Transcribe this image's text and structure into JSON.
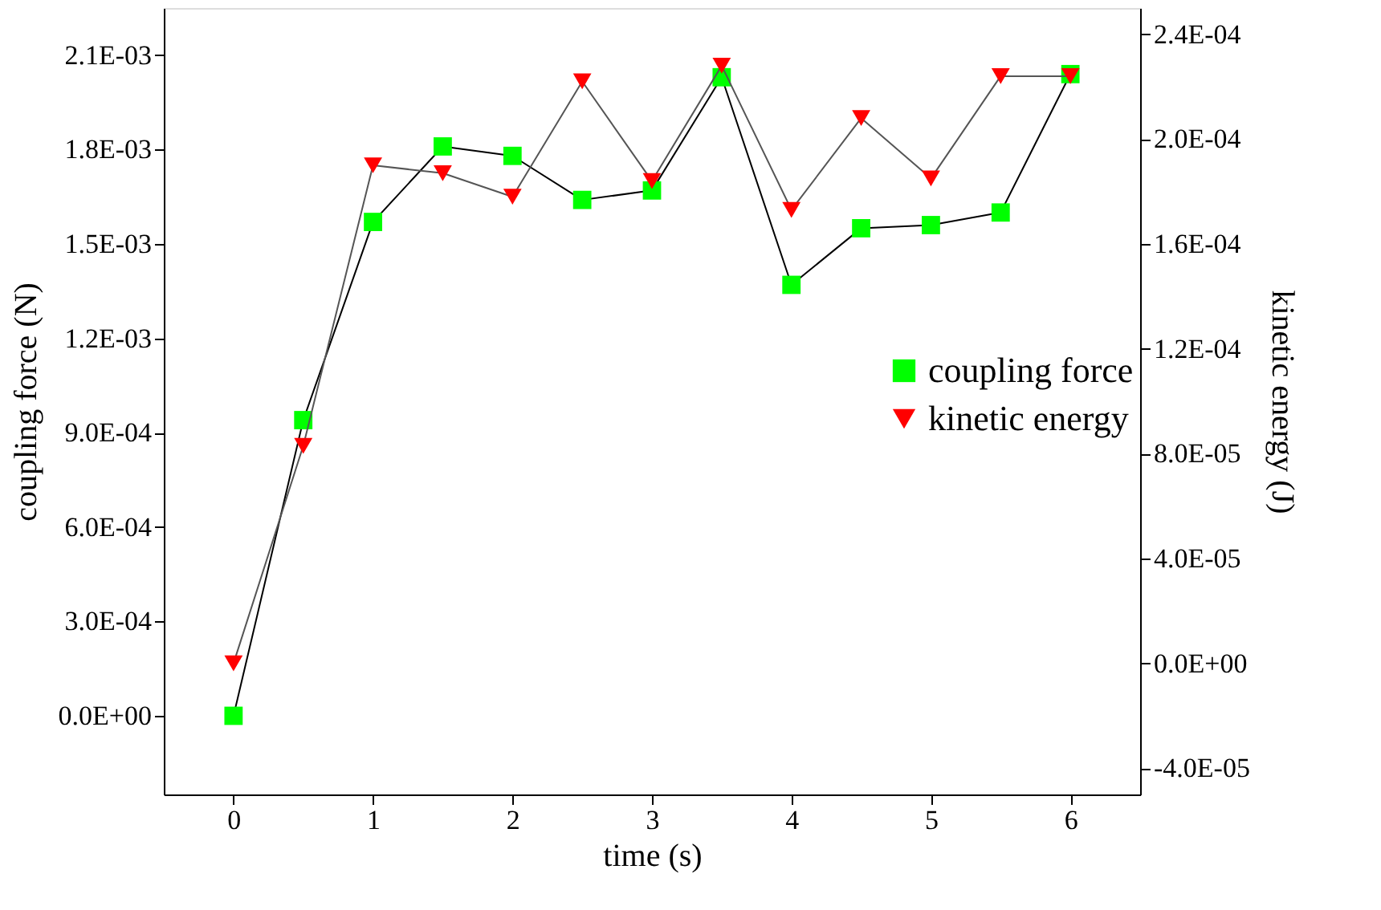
{
  "chart_data": {
    "type": "line",
    "xlabel": "time (s)",
    "ylabel": "coupling force (N)",
    "y2label": "kinetic energy (J)",
    "x": [
      0,
      0.5,
      1,
      1.5,
      2,
      2.5,
      3,
      3.5,
      4,
      4.5,
      5,
      5.5,
      6
    ],
    "xlim": [
      -0.5,
      6.5
    ],
    "xticks": [
      0,
      1,
      2,
      3,
      4,
      5,
      6
    ],
    "ylim": [
      -0.00025,
      0.00225
    ],
    "yticks": [
      {
        "value": 0,
        "label": "0.0E+00"
      },
      {
        "value": 0.0003,
        "label": "3.0E-04"
      },
      {
        "value": 0.0006,
        "label": "6.0E-04"
      },
      {
        "value": 0.0009,
        "label": "9.0E-04"
      },
      {
        "value": 0.0012,
        "label": "1.2E-03"
      },
      {
        "value": 0.0015,
        "label": "1.5E-03"
      },
      {
        "value": 0.0018,
        "label": "1.8E-03"
      },
      {
        "value": 0.0021,
        "label": "2.1E-03"
      }
    ],
    "y2lim": [
      -5e-05,
      0.00025
    ],
    "y2ticks": [
      {
        "value": -4e-05,
        "label": "-4.0E-05"
      },
      {
        "value": 0,
        "label": "0.0E+00"
      },
      {
        "value": 4e-05,
        "label": "4.0E-05"
      },
      {
        "value": 8e-05,
        "label": "8.0E-05"
      },
      {
        "value": 0.00012,
        "label": "1.2E-04"
      },
      {
        "value": 0.00016,
        "label": "1.6E-04"
      },
      {
        "value": 0.0002,
        "label": "2.0E-04"
      },
      {
        "value": 0.00024,
        "label": "2.4E-04"
      }
    ],
    "legend": "right",
    "grid": false,
    "series": [
      {
        "name": "coupling force",
        "color": "#00ff00",
        "marker": "square",
        "values": [
          0,
          0.00094,
          0.00157,
          0.00181,
          0.00178,
          0.00164,
          0.00167,
          0.00203,
          0.00137,
          0.00155,
          0.00156,
          0.0016,
          0.00204
        ]
      },
      {
        "name": "kinetic energy",
        "color": "#ff0000",
        "marker": "triangle",
        "axis": "y2",
        "values": [
          0,
          8.3e-05,
          0.00019,
          0.000187,
          0.000178,
          0.000222,
          0.000184,
          0.000228,
          0.000173,
          0.000208,
          0.000185,
          0.000224,
          0.000224
        ]
      }
    ]
  }
}
